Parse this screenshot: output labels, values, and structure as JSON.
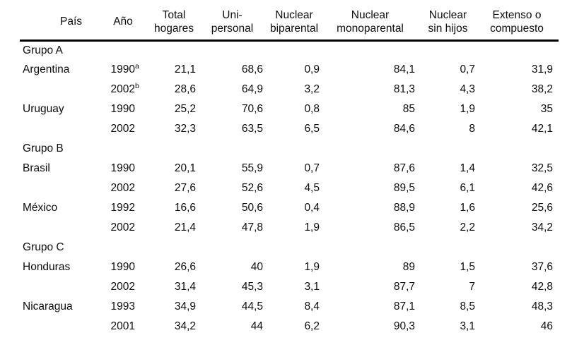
{
  "page": {
    "background_color": "#ffffff",
    "text_color": "#0d0d0d",
    "rule_color": "#000000"
  },
  "table": {
    "headers": [
      {
        "id": "pais",
        "line1": "País",
        "line2": ""
      },
      {
        "id": "ano",
        "line1": "Año",
        "line2": ""
      },
      {
        "id": "total-hogares",
        "line1": "Total",
        "line2": "hogares"
      },
      {
        "id": "unipersonal",
        "line1": "Uni-",
        "line2": "personal"
      },
      {
        "id": "nuclear-biparental",
        "line1": "Nuclear",
        "line2": "biparental"
      },
      {
        "id": "nuclear-monoparental",
        "line1": "Nuclear",
        "line2": "monoparental"
      },
      {
        "id": "nuclear-sin-hijos",
        "line1": "Nuclear",
        "line2": "sin hijos"
      },
      {
        "id": "extenso-compuesto",
        "line1": "Extenso o",
        "line2": "compuesto"
      }
    ],
    "rows": [
      {
        "type": "group",
        "label": "Grupo A"
      },
      {
        "type": "data",
        "country": "Argentina",
        "year": "1990",
        "year_note": "a",
        "values": [
          "21,1",
          "68,6",
          "0,9",
          "84,1",
          "0,7",
          "31,9"
        ]
      },
      {
        "type": "data",
        "country": "",
        "year": "2002",
        "year_note": "b",
        "values": [
          "28,6",
          "64,9",
          "3,2",
          "81,3",
          "4,3",
          "38,2"
        ]
      },
      {
        "type": "data",
        "country": "Uruguay",
        "year": "1990",
        "year_note": "",
        "values": [
          "25,2",
          "70,6",
          "0,8",
          "85",
          "1,9",
          "35"
        ]
      },
      {
        "type": "data",
        "country": "",
        "year": "2002",
        "year_note": "",
        "values": [
          "32,3",
          "63,5",
          "6,5",
          "84,6",
          "8",
          "42,1"
        ]
      },
      {
        "type": "group",
        "label": "Grupo B"
      },
      {
        "type": "data",
        "country": "Brasil",
        "year": "1990",
        "year_note": "",
        "values": [
          "20,1",
          "55,9",
          "0,7",
          "87,6",
          "1,4",
          "32,5"
        ]
      },
      {
        "type": "data",
        "country": "",
        "year": "2002",
        "year_note": "",
        "values": [
          "27,6",
          "52,6",
          "4,5",
          "89,5",
          "6,1",
          "42,6"
        ]
      },
      {
        "type": "data",
        "country": "México",
        "year": "1992",
        "year_note": "",
        "values": [
          "16,6",
          "50,6",
          "0,4",
          "88,9",
          "1,6",
          "25,6"
        ]
      },
      {
        "type": "data",
        "country": "",
        "year": "2002",
        "year_note": "",
        "values": [
          "21,4",
          "47,8",
          "1,9",
          "86,5",
          "2,2",
          "34,2"
        ]
      },
      {
        "type": "group",
        "label": "Grupo C"
      },
      {
        "type": "data",
        "country": "Honduras",
        "year": "1990",
        "year_note": "",
        "values": [
          "26,6",
          "40",
          "1,9",
          "89",
          "1,5",
          "37,6"
        ]
      },
      {
        "type": "data",
        "country": "",
        "year": "2002",
        "year_note": "",
        "values": [
          "31,4",
          "45,3",
          "3,1",
          "87,7",
          "7",
          "42,8"
        ]
      },
      {
        "type": "data",
        "country": "Nicaragua",
        "year": "1993",
        "year_note": "",
        "values": [
          "34,9",
          "44,5",
          "8,4",
          "87,1",
          "8,5",
          "48,3"
        ]
      },
      {
        "type": "data",
        "country": "",
        "year": "2001",
        "year_note": "",
        "values": [
          "34,2",
          "44",
          "6,2",
          "90,3",
          "3,1",
          "46"
        ]
      }
    ]
  }
}
